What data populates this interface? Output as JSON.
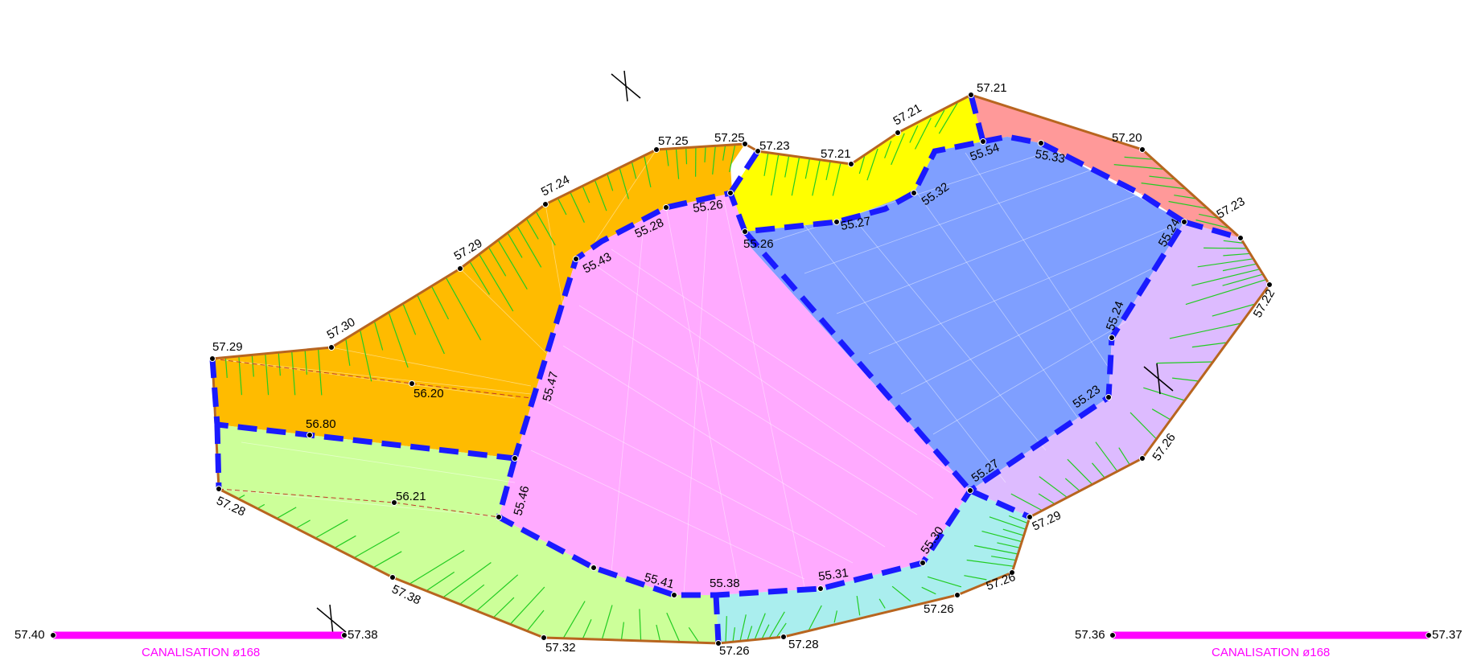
{
  "colors": {
    "orange": "#ffbb00",
    "yellow": "#ffff00",
    "salmon": "#ff9999",
    "blue": "#7f9fff",
    "pink": "#ffaaff",
    "lavender": "#ddbbff",
    "lightgreen": "#ccff99",
    "cyan": "#aaeeee",
    "outline": "#b8651f",
    "breakline": "#1a1aff",
    "slope_hatch": "#22cc22",
    "pipe": "#ff00ff"
  },
  "outer_points": [
    "57.29",
    "57.30",
    "57.29",
    "57.24",
    "57.25",
    "57.25",
    "57.23",
    "57.21",
    "57.21",
    "57.21",
    "57.20",
    "57.23",
    "57.22",
    "57.26",
    "57.29",
    "57.26",
    "57.26",
    "57.28",
    "57.26",
    "57.32",
    "57.38",
    "57.28"
  ],
  "inner_points": [
    "55.26",
    "55.28",
    "55.43",
    "55.47",
    "55.46",
    "55.41",
    "55.38",
    "55.31",
    "55.30",
    "55.27",
    "55.23",
    "55.24",
    "55.24",
    "55.33",
    "55.54",
    "55.32",
    "55.27",
    "55.26"
  ],
  "misc_points": [
    "56.20",
    "56.80",
    "56.21"
  ],
  "pipes": [
    {
      "start": "57.40",
      "end": "57.38",
      "label": "CANALISATION ø168"
    },
    {
      "start": "57.36",
      "end": "57.37",
      "label": "CANALISATION ø168"
    }
  ]
}
